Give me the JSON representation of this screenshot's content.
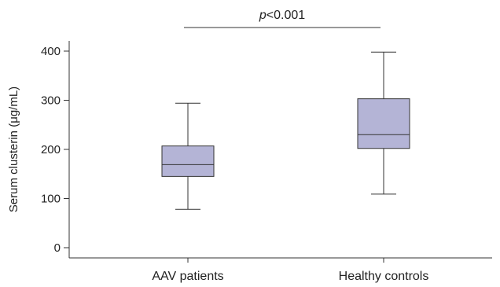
{
  "colors": {
    "box_fill": "#b4b4d6",
    "line": "#333333",
    "text": "#222222"
  },
  "chart_data": {
    "type": "box",
    "title": "",
    "xlabel": "",
    "ylabel": "Serum clusterin (μg/mL)",
    "ylim": [
      0,
      400
    ],
    "yticks": [
      0,
      100,
      200,
      300,
      400
    ],
    "categories": [
      "AAV patients",
      "Healthy controls"
    ],
    "boxes": [
      {
        "category": "AAV patients",
        "min": 78,
        "q1": 145,
        "median": 169,
        "q3": 207,
        "max": 294
      },
      {
        "category": "Healthy controls",
        "min": 109,
        "q1": 202,
        "median": 230,
        "q3": 303,
        "max": 398
      }
    ],
    "annotation": {
      "p_symbol": "p",
      "p_value": "<0.001"
    }
  }
}
